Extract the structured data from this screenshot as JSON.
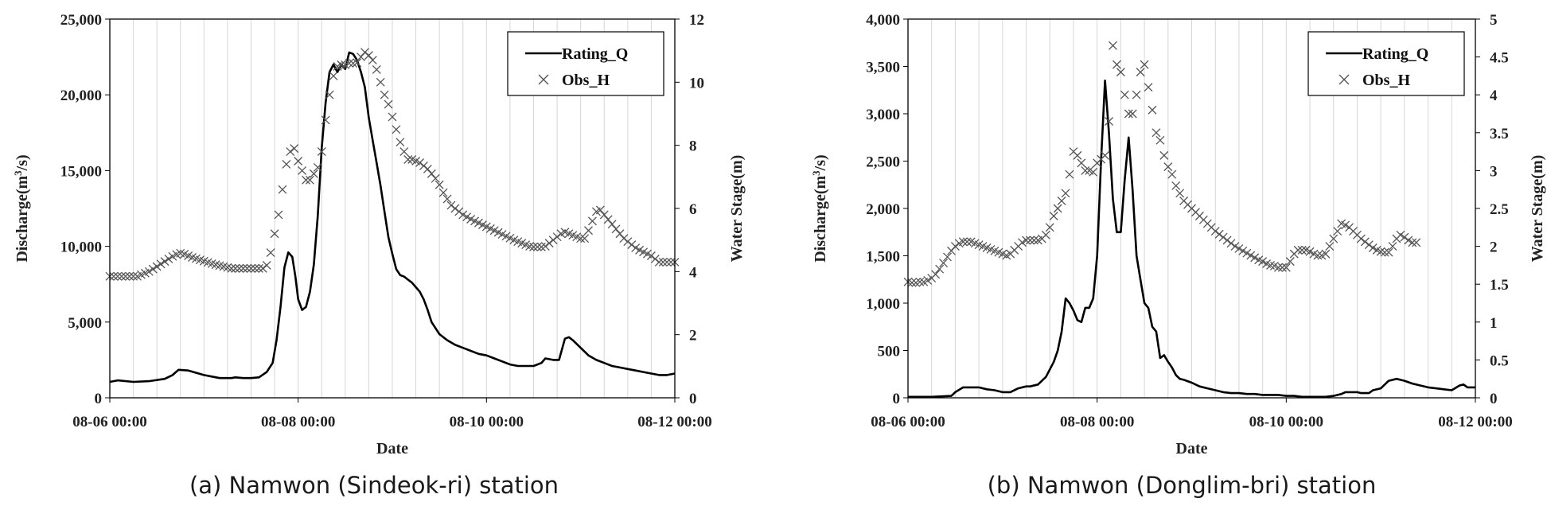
{
  "chart_data": [
    {
      "type": "line",
      "caption": "(a) Namwon (Sindeok-ri) station",
      "xlabel": "Date",
      "ylabel": "Discharge(m³/s)",
      "ylabel_base": "Discharge(m",
      "ylabel_sup": "3",
      "ylabel_end": "/s)",
      "y2label": "Water Stage(m)",
      "xlim": [
        0,
        144
      ],
      "x_ticks": [
        {
          "hours": 0,
          "label": "08-06 00:00"
        },
        {
          "hours": 48,
          "label": "08-08 00:00"
        },
        {
          "hours": 96,
          "label": "08-10 00:00"
        },
        {
          "hours": 144,
          "label": "08-12 00:00"
        }
      ],
      "ylim": [
        0,
        25000
      ],
      "y_ticks": [
        {
          "value": 0,
          "label": "0"
        },
        {
          "value": 5000,
          "label": "5,000"
        },
        {
          "value": 10000,
          "label": "10,000"
        },
        {
          "value": 15000,
          "label": "15,000"
        },
        {
          "value": 20000,
          "label": "20,000"
        },
        {
          "value": 25000,
          "label": "25,000"
        }
      ],
      "y2lim": [
        0,
        12
      ],
      "y2_ticks": [
        {
          "value": 0,
          "label": "0"
        },
        {
          "value": 2,
          "label": "2"
        },
        {
          "value": 4,
          "label": "4"
        },
        {
          "value": 6,
          "label": "6"
        },
        {
          "value": 8,
          "label": "8"
        },
        {
          "value": 10,
          "label": "10"
        },
        {
          "value": 12,
          "label": "12"
        }
      ],
      "legend": [
        {
          "name": "Rating_Q",
          "marker": "line"
        },
        {
          "name": "Obs_H",
          "marker": "x"
        }
      ],
      "legend_position": "top-right",
      "series": [
        {
          "name": "Rating_Q",
          "axis": "left",
          "x": [
            0,
            2,
            6,
            10,
            14,
            16,
            17.5,
            20,
            24,
            26,
            28,
            31,
            32,
            34,
            36,
            38,
            40,
            41.5,
            42.5,
            43.5,
            44.5,
            45.5,
            46.5,
            47.3,
            48,
            49,
            50,
            51,
            52,
            53,
            54,
            55,
            56,
            57,
            58,
            59,
            60,
            61,
            62,
            63,
            64,
            65,
            66,
            67,
            68,
            69,
            70,
            71,
            72,
            73,
            74,
            75,
            76,
            77,
            78,
            79,
            80,
            81,
            82,
            84,
            86,
            88,
            90,
            92,
            94,
            96,
            98,
            100,
            102,
            104,
            106,
            108,
            110,
            111,
            113,
            114.5,
            116,
            117,
            118,
            120,
            122,
            124,
            126,
            128,
            130,
            132,
            134,
            136,
            138,
            140,
            142,
            144
          ],
          "values": [
            1050,
            1150,
            1050,
            1100,
            1250,
            1500,
            1850,
            1800,
            1500,
            1400,
            1300,
            1300,
            1350,
            1300,
            1300,
            1350,
            1700,
            2300,
            3800,
            6000,
            8600,
            9600,
            9300,
            8000,
            6500,
            5800,
            6000,
            7000,
            8800,
            12000,
            16500,
            19500,
            21500,
            22000,
            21500,
            22000,
            21700,
            22800,
            22700,
            22300,
            21500,
            20500,
            18500,
            17000,
            15500,
            14000,
            12300,
            10600,
            9500,
            8500,
            8100,
            8000,
            7800,
            7600,
            7300,
            7000,
            6500,
            5800,
            5000,
            4200,
            3800,
            3500,
            3300,
            3100,
            2900,
            2800,
            2600,
            2400,
            2200,
            2100,
            2100,
            2100,
            2300,
            2600,
            2500,
            2500,
            3900,
            4000,
            3800,
            3300,
            2800,
            2500,
            2300,
            2100,
            2000,
            1900,
            1800,
            1700,
            1600,
            1500,
            1500,
            1600
          ]
        },
        {
          "name": "Obs_H",
          "axis": "right",
          "interval_hours": 1,
          "values": [
            3.85,
            3.85,
            3.85,
            3.85,
            3.85,
            3.85,
            3.85,
            3.85,
            3.9,
            3.95,
            4.0,
            4.08,
            4.16,
            4.24,
            4.32,
            4.4,
            4.48,
            4.54,
            4.58,
            4.55,
            4.5,
            4.45,
            4.41,
            4.37,
            4.33,
            4.29,
            4.25,
            4.22,
            4.19,
            4.16,
            4.13,
            4.1,
            4.1,
            4.1,
            4.1,
            4.1,
            4.1,
            4.1,
            4.1,
            4.1,
            4.2,
            4.6,
            5.2,
            5.8,
            6.6,
            7.4,
            7.8,
            7.9,
            7.5,
            7.2,
            6.9,
            6.9,
            7.1,
            7.3,
            7.8,
            8.8,
            9.6,
            10.2,
            10.5,
            10.55,
            10.55,
            10.6,
            10.6,
            10.62,
            10.8,
            10.95,
            10.85,
            10.7,
            10.4,
            10.0,
            9.6,
            9.3,
            8.9,
            8.5,
            8.1,
            7.8,
            7.55,
            7.55,
            7.5,
            7.45,
            7.35,
            7.25,
            7.1,
            6.95,
            6.75,
            6.5,
            6.3,
            6.1,
            6.0,
            5.9,
            5.8,
            5.73,
            5.66,
            5.6,
            5.54,
            5.48,
            5.42,
            5.36,
            5.3,
            5.24,
            5.18,
            5.12,
            5.06,
            5.0,
            4.95,
            4.9,
            4.85,
            4.8,
            4.78,
            4.78,
            4.78,
            4.8,
            4.9,
            5.0,
            5.1,
            5.2,
            5.25,
            5.2,
            5.15,
            5.1,
            5.05,
            5.05,
            5.3,
            5.6,
            5.9,
            5.95,
            5.8,
            5.65,
            5.5,
            5.35,
            5.2,
            5.05,
            4.95,
            4.85,
            4.75,
            4.68,
            4.62,
            4.56,
            4.5,
            4.4,
            4.3,
            4.3,
            4.3,
            4.3,
            4.3
          ]
        }
      ]
    },
    {
      "type": "line",
      "caption": "(b) Namwon (Donglim-bri) station",
      "xlabel": "Date",
      "ylabel": "Discharge(m³/s)",
      "ylabel_base": "Discharge(m",
      "ylabel_sup": "3",
      "ylabel_end": "/s)",
      "y2label": "Water Stage(m)",
      "xlim": [
        0,
        144
      ],
      "x_ticks": [
        {
          "hours": 0,
          "label": "08-06 00:00"
        },
        {
          "hours": 48,
          "label": "08-08 00:00"
        },
        {
          "hours": 96,
          "label": "08-10 00:00"
        },
        {
          "hours": 144,
          "label": "08-12 00:00"
        }
      ],
      "ylim": [
        0,
        4000
      ],
      "y_ticks": [
        {
          "value": 0,
          "label": "0"
        },
        {
          "value": 500,
          "label": "500"
        },
        {
          "value": 1000,
          "label": "1,000"
        },
        {
          "value": 1500,
          "label": "1,500"
        },
        {
          "value": 2000,
          "label": "2,000"
        },
        {
          "value": 2500,
          "label": "2,500"
        },
        {
          "value": 3000,
          "label": "3,000"
        },
        {
          "value": 3500,
          "label": "3,500"
        },
        {
          "value": 4000,
          "label": "4,000"
        }
      ],
      "y2lim": [
        0,
        5
      ],
      "y2_ticks": [
        {
          "value": 0,
          "label": "0"
        },
        {
          "value": 0.5,
          "label": "0.5"
        },
        {
          "value": 1,
          "label": "1"
        },
        {
          "value": 1.5,
          "label": "1.5"
        },
        {
          "value": 2,
          "label": "2"
        },
        {
          "value": 2.5,
          "label": "2.5"
        },
        {
          "value": 3,
          "label": "3"
        },
        {
          "value": 3.5,
          "label": "3.5"
        },
        {
          "value": 4,
          "label": "4"
        },
        {
          "value": 4.5,
          "label": "4.5"
        },
        {
          "value": 5,
          "label": "5"
        }
      ],
      "legend": [
        {
          "name": "Rating_Q",
          "marker": "line"
        },
        {
          "name": "Obs_H",
          "marker": "x"
        }
      ],
      "legend_position": "top-right",
      "series": [
        {
          "name": "Rating_Q",
          "axis": "left",
          "x": [
            0,
            6,
            11,
            12,
            14,
            18,
            20,
            22,
            24,
            26,
            28,
            30,
            31,
            33,
            35,
            37,
            38,
            39,
            40,
            41,
            42,
            43,
            44,
            45,
            46,
            47,
            48,
            49,
            50,
            51,
            52,
            53,
            54,
            55,
            56,
            57,
            58,
            59,
            60,
            61,
            62,
            63,
            64,
            65,
            66,
            67,
            68,
            69,
            70,
            72,
            74,
            76,
            78,
            80,
            82,
            84,
            86,
            88,
            90,
            92,
            94,
            96,
            98,
            100,
            102,
            104,
            106,
            108,
            110,
            111,
            112,
            114,
            115,
            116,
            117,
            118,
            120,
            122,
            124,
            126,
            128,
            130,
            132,
            134,
            136,
            138,
            140,
            141,
            142,
            144
          ],
          "values": [
            10,
            10,
            20,
            60,
            110,
            110,
            90,
            80,
            60,
            60,
            100,
            120,
            120,
            140,
            220,
            380,
            500,
            700,
            1050,
            1000,
            920,
            820,
            800,
            950,
            950,
            1050,
            1500,
            2500,
            3350,
            2800,
            2100,
            1750,
            1750,
            2300,
            2750,
            2200,
            1500,
            1250,
            1000,
            950,
            750,
            700,
            420,
            450,
            380,
            320,
            240,
            200,
            190,
            160,
            120,
            100,
            80,
            60,
            50,
            50,
            40,
            40,
            30,
            30,
            30,
            20,
            20,
            10,
            10,
            10,
            10,
            20,
            40,
            60,
            60,
            60,
            50,
            50,
            50,
            80,
            100,
            180,
            200,
            180,
            150,
            130,
            110,
            100,
            90,
            80,
            130,
            140,
            110,
            110
          ]
        },
        {
          "name": "Obs_H",
          "axis": "right",
          "interval_hours": 1,
          "values": [
            1.53,
            1.52,
            1.52,
            1.53,
            1.53,
            1.55,
            1.58,
            1.63,
            1.7,
            1.78,
            1.86,
            1.94,
            2.0,
            2.04,
            2.06,
            2.06,
            2.06,
            2.04,
            2.02,
            2.0,
            1.98,
            1.96,
            1.94,
            1.92,
            1.9,
            1.88,
            1.9,
            1.95,
            2.0,
            2.05,
            2.08,
            2.08,
            2.08,
            2.08,
            2.1,
            2.15,
            2.25,
            2.4,
            2.5,
            2.6,
            2.7,
            2.95,
            3.25,
            3.2,
            3.1,
            3.0,
            3.0,
            2.98,
            3.1,
            3.15,
            3.2,
            3.65,
            4.65,
            4.4,
            4.3,
            4.0,
            3.75,
            3.75,
            4.0,
            4.3,
            4.4,
            4.1,
            3.8,
            3.5,
            3.4,
            3.2,
            3.05,
            2.95,
            2.8,
            2.7,
            2.6,
            2.55,
            2.5,
            2.45,
            2.4,
            2.35,
            2.3,
            2.25,
            2.2,
            2.16,
            2.12,
            2.08,
            2.04,
            2.0,
            1.97,
            1.94,
            1.91,
            1.88,
            1.85,
            1.82,
            1.8,
            1.77,
            1.75,
            1.74,
            1.72,
            1.72,
            1.72,
            1.8,
            1.9,
            1.95,
            1.95,
            1.95,
            1.93,
            1.9,
            1.88,
            1.88,
            1.9,
            2.0,
            2.1,
            2.2,
            2.3,
            2.28,
            2.25,
            2.2,
            2.15,
            2.1,
            2.06,
            2.02,
            1.98,
            1.95,
            1.93,
            1.92,
            1.92,
            2.0,
            2.1,
            2.15,
            2.12,
            2.08,
            2.05,
            2.05
          ]
        }
      ]
    }
  ]
}
